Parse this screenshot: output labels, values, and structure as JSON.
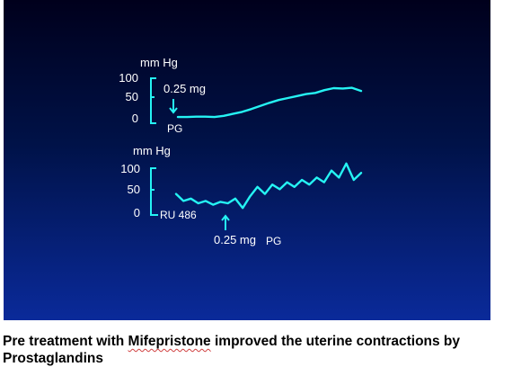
{
  "caption": {
    "before": "Pre treatment with ",
    "drug": "Mifepristone",
    "after": " improved the uterine contractions by Prostaglandins"
  },
  "colors": {
    "trace": "#25f3f3",
    "text": "#ffffff"
  },
  "chart_data": [
    {
      "type": "line",
      "ylabel": "mm Hg",
      "ytick_labels": [
        "100",
        "50",
        "0"
      ],
      "ylim": [
        0,
        100
      ],
      "annotations": {
        "dose": "0.25 mg",
        "agent": "PG"
      },
      "x": [
        0,
        5,
        10,
        15,
        20,
        25,
        30,
        35,
        40,
        45,
        50,
        55,
        60,
        65,
        70,
        75,
        80,
        85,
        90,
        95,
        100
      ],
      "series": [
        {
          "values": [
            2,
            2,
            3,
            3,
            2,
            5,
            10,
            15,
            22,
            30,
            38,
            45,
            50,
            55,
            60,
            63,
            70,
            75,
            74,
            76,
            68
          ]
        }
      ]
    },
    {
      "type": "line",
      "ylabel": "mm Hg",
      "ytick_labels": [
        "100",
        "50",
        "0"
      ],
      "ylim": [
        0,
        100
      ],
      "annotations": {
        "baseline": "RU 486",
        "dose": "0.25 mg",
        "agent": "PG"
      },
      "x": [
        0,
        4,
        8,
        12,
        16,
        20,
        24,
        28,
        32,
        36,
        40,
        44,
        48,
        52,
        56,
        60,
        64,
        68,
        72,
        76,
        80,
        84,
        88,
        92,
        96,
        100
      ],
      "series": [
        {
          "values": [
            45,
            30,
            35,
            25,
            30,
            22,
            28,
            25,
            35,
            15,
            40,
            60,
            45,
            65,
            55,
            70,
            60,
            75,
            65,
            80,
            70,
            95,
            80,
            110,
            75,
            90
          ]
        }
      ]
    }
  ]
}
